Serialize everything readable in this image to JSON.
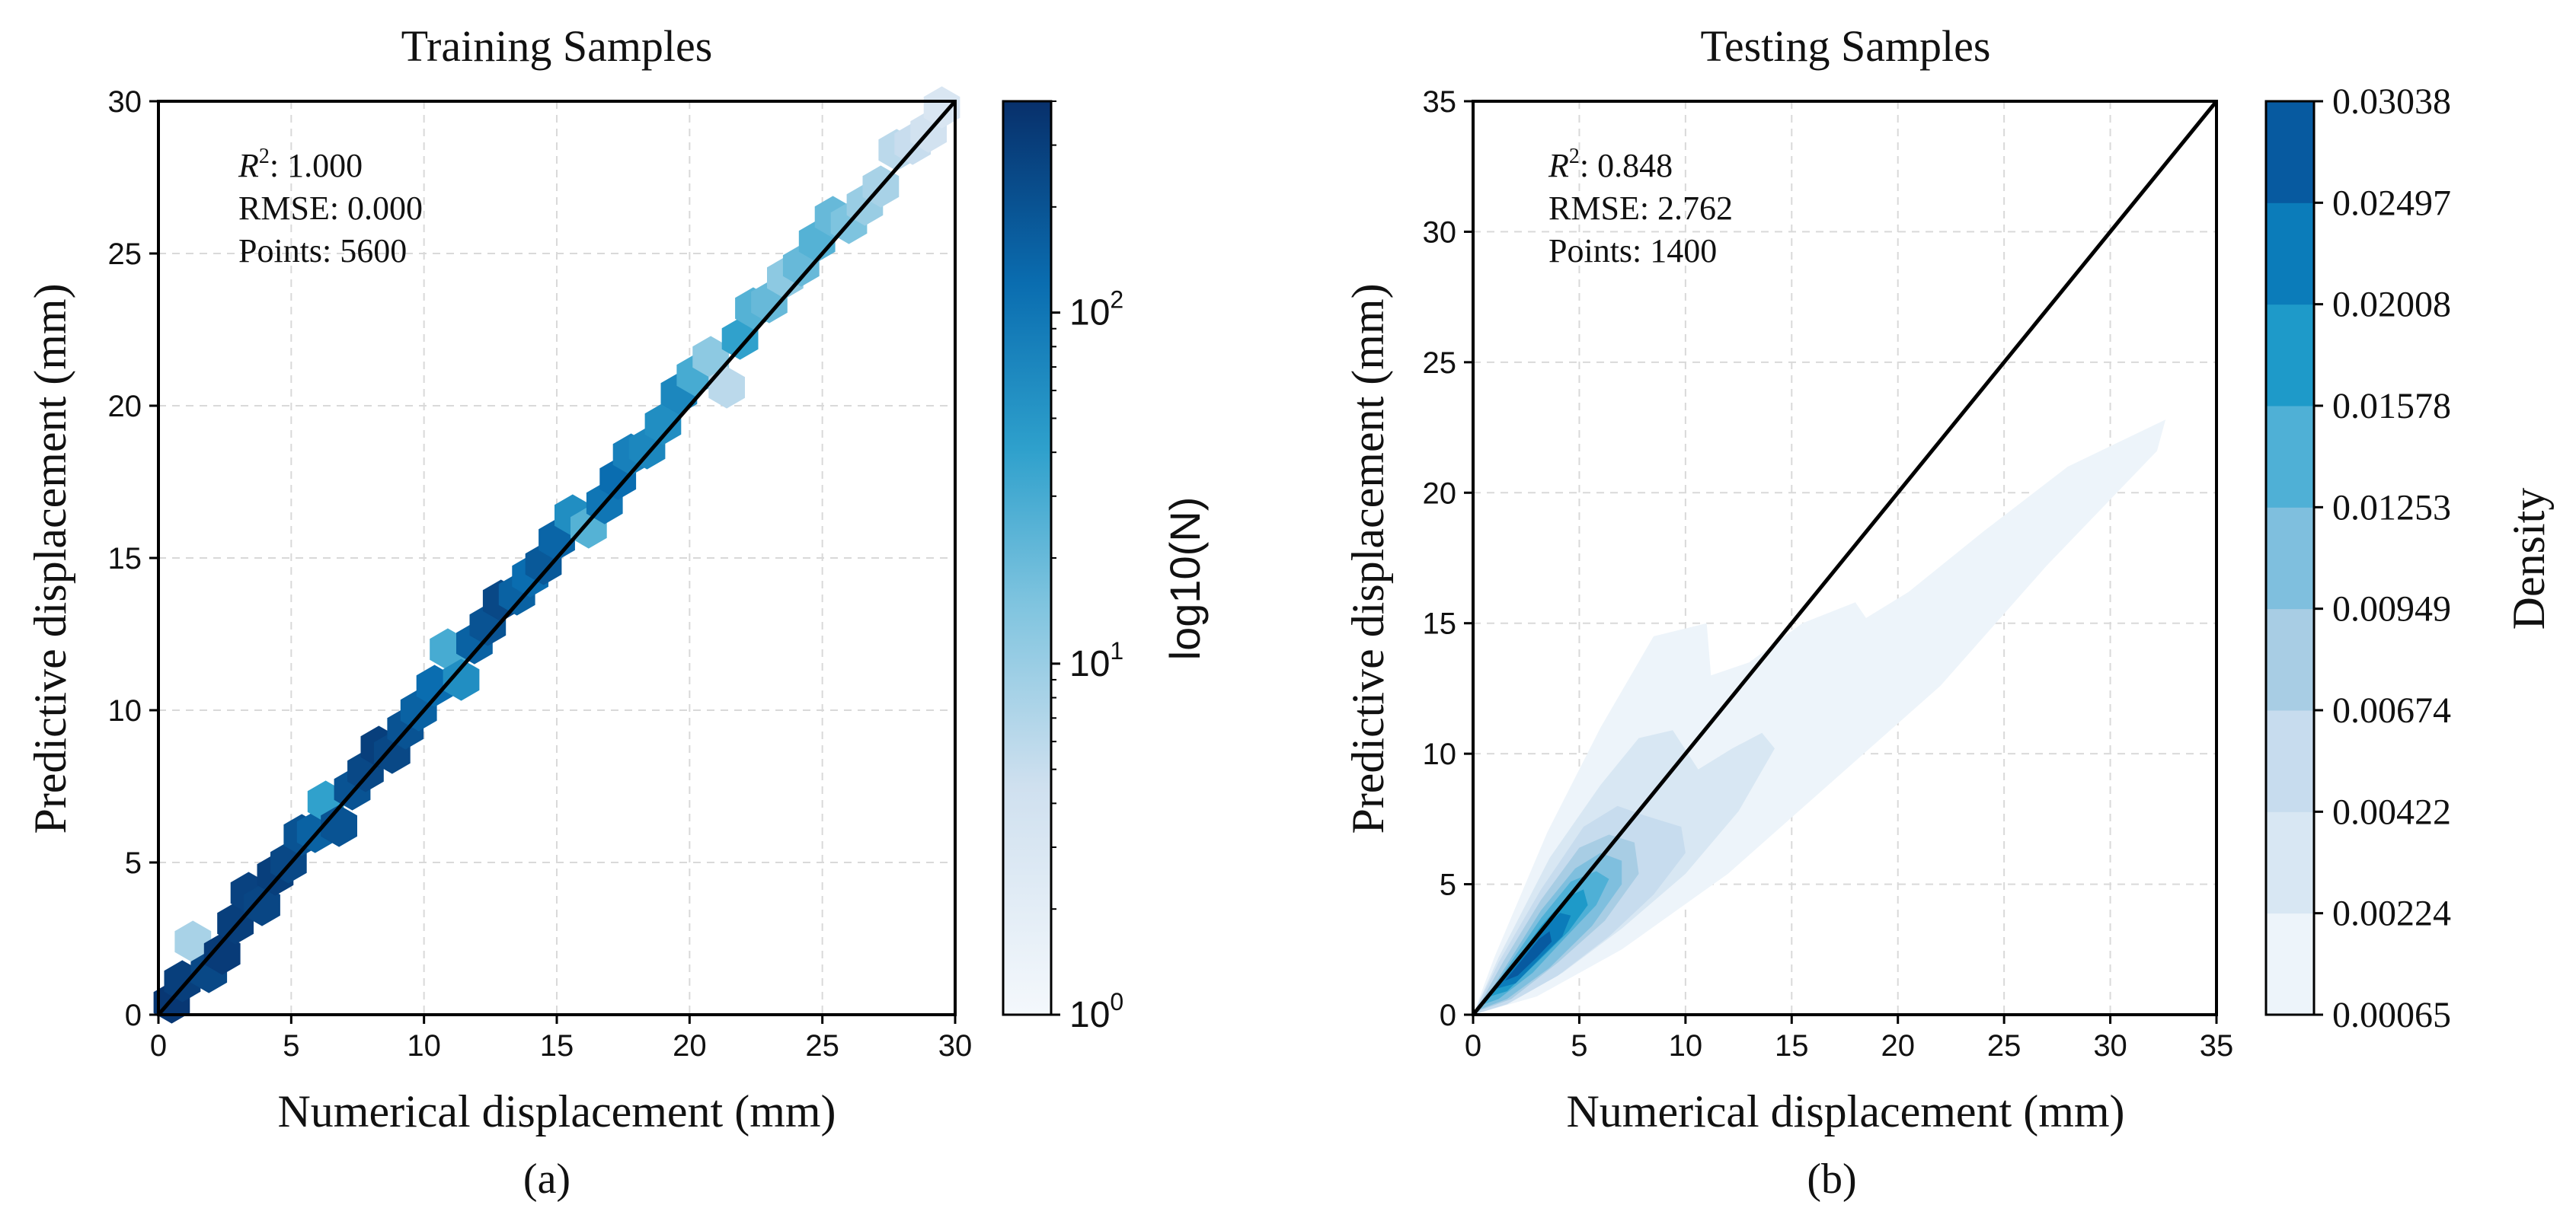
{
  "chart_data": [
    {
      "type": "hexbin",
      "title": "Training Samples",
      "xlabel": "Numerical displacement (mm)",
      "ylabel": "Predictive displacement (mm)",
      "caption": "(a)",
      "xlim": [
        0,
        30
      ],
      "ylim": [
        0,
        30
      ],
      "xticks": [
        0,
        5,
        10,
        15,
        20,
        25,
        30
      ],
      "yticks": [
        0,
        5,
        10,
        15,
        20,
        25,
        30
      ],
      "grid": true,
      "reference_line": "y = x",
      "stats": {
        "r2_symbol": "R",
        "r2_sup": "2",
        "r2": ": 1.000",
        "rmse": "RMSE: 0.000",
        "points": "Points: 5600"
      },
      "colorbar": {
        "label": "log10(N)",
        "scale": "log",
        "range": [
          1,
          400
        ],
        "ticks": [
          {
            "base": "10",
            "exp": "0",
            "value": 1
          },
          {
            "base": "10",
            "exp": "1",
            "value": 10
          },
          {
            "base": "10",
            "exp": "2",
            "value": 100
          }
        ]
      },
      "hexbins": [
        {
          "x": 0.5,
          "y": 0.4,
          "count": 350
        },
        {
          "x": 0.9,
          "y": 1.1,
          "count": 300
        },
        {
          "x": 1.3,
          "y": 2.4,
          "count": 8
        },
        {
          "x": 1.9,
          "y": 1.4,
          "count": 250
        },
        {
          "x": 2.4,
          "y": 2.0,
          "count": 320
        },
        {
          "x": 2.9,
          "y": 3.0,
          "count": 300
        },
        {
          "x": 3.4,
          "y": 4.0,
          "count": 280
        },
        {
          "x": 3.9,
          "y": 3.6,
          "count": 260
        },
        {
          "x": 4.4,
          "y": 4.6,
          "count": 300
        },
        {
          "x": 4.9,
          "y": 5.0,
          "count": 250
        },
        {
          "x": 5.4,
          "y": 5.9,
          "count": 200
        },
        {
          "x": 5.9,
          "y": 6.0,
          "count": 150
        },
        {
          "x": 6.3,
          "y": 7.0,
          "count": 40
        },
        {
          "x": 6.8,
          "y": 6.2,
          "count": 200
        },
        {
          "x": 7.3,
          "y": 7.4,
          "count": 200
        },
        {
          "x": 7.8,
          "y": 8.0,
          "count": 250
        },
        {
          "x": 8.3,
          "y": 8.8,
          "count": 300
        },
        {
          "x": 8.8,
          "y": 8.6,
          "count": 250
        },
        {
          "x": 9.3,
          "y": 9.4,
          "count": 200
        },
        {
          "x": 9.8,
          "y": 10.0,
          "count": 150
        },
        {
          "x": 10.4,
          "y": 10.8,
          "count": 120
        },
        {
          "x": 10.9,
          "y": 12.0,
          "count": 30
        },
        {
          "x": 11.4,
          "y": 11.0,
          "count": 60
        },
        {
          "x": 11.9,
          "y": 12.2,
          "count": 150
        },
        {
          "x": 12.4,
          "y": 12.8,
          "count": 200
        },
        {
          "x": 12.9,
          "y": 13.6,
          "count": 250
        },
        {
          "x": 13.5,
          "y": 13.8,
          "count": 150
        },
        {
          "x": 14.0,
          "y": 14.4,
          "count": 120
        },
        {
          "x": 14.5,
          "y": 14.8,
          "count": 180
        },
        {
          "x": 15.0,
          "y": 15.6,
          "count": 140
        },
        {
          "x": 15.6,
          "y": 16.4,
          "count": 60
        },
        {
          "x": 16.2,
          "y": 16.0,
          "count": 25
        },
        {
          "x": 16.8,
          "y": 16.8,
          "count": 100
        },
        {
          "x": 17.3,
          "y": 17.6,
          "count": 120
        },
        {
          "x": 17.8,
          "y": 18.4,
          "count": 80
        },
        {
          "x": 18.4,
          "y": 18.6,
          "count": 70
        },
        {
          "x": 19.0,
          "y": 19.4,
          "count": 60
        },
        {
          "x": 19.6,
          "y": 20.4,
          "count": 70
        },
        {
          "x": 20.2,
          "y": 21.0,
          "count": 30
        },
        {
          "x": 20.8,
          "y": 21.6,
          "count": 12
        },
        {
          "x": 21.4,
          "y": 20.6,
          "count": 6
        },
        {
          "x": 21.9,
          "y": 22.2,
          "count": 40
        },
        {
          "x": 22.4,
          "y": 23.2,
          "count": 25
        },
        {
          "x": 23.0,
          "y": 23.4,
          "count": 20
        },
        {
          "x": 23.6,
          "y": 24.2,
          "count": 12
        },
        {
          "x": 24.2,
          "y": 24.6,
          "count": 20
        },
        {
          "x": 24.8,
          "y": 25.4,
          "count": 25
        },
        {
          "x": 25.4,
          "y": 26.2,
          "count": 20
        },
        {
          "x": 26.0,
          "y": 26.0,
          "count": 15
        },
        {
          "x": 26.6,
          "y": 26.6,
          "count": 10
        },
        {
          "x": 27.2,
          "y": 27.2,
          "count": 8
        },
        {
          "x": 27.8,
          "y": 28.4,
          "count": 6
        },
        {
          "x": 28.4,
          "y": 28.6,
          "count": 5
        },
        {
          "x": 29.0,
          "y": 29.0,
          "count": 4
        },
        {
          "x": 29.5,
          "y": 29.8,
          "count": 3
        }
      ]
    },
    {
      "type": "kde",
      "title": "Testing Samples",
      "xlabel": "Numerical displacement (mm)",
      "ylabel": "Predictive displacement (mm)",
      "caption": "(b)",
      "xlim": [
        0,
        35
      ],
      "ylim": [
        0,
        35
      ],
      "xticks": [
        0,
        5,
        10,
        15,
        20,
        25,
        30,
        35
      ],
      "yticks": [
        0,
        5,
        10,
        15,
        20,
        25,
        30,
        35
      ],
      "grid": true,
      "reference_line": "y = x",
      "stats": {
        "r2_symbol": "R",
        "r2_sup": "2",
        "r2": ": 0.848",
        "rmse": "RMSE: 2.762",
        "points": "Points: 1400"
      },
      "colorbar": {
        "label": "Density",
        "levels": [
          "0.00065",
          "0.00224",
          "0.00422",
          "0.00674",
          "0.00949",
          "0.01253",
          "0.01578",
          "0.02008",
          "0.02497",
          "0.03038"
        ],
        "colors": [
          "#edf4fa",
          "#d8e7f3",
          "#c7dcee",
          "#a8cde4",
          "#7fbfde",
          "#4fb0d6",
          "#1e9ac9",
          "#0b7cba",
          "#075aa0",
          "#08306b"
        ]
      },
      "contours": [
        {
          "level": 0.00065,
          "polygon": [
            [
              0.0,
              0.0
            ],
            [
              1.0,
              2.2
            ],
            [
              3.5,
              7.0
            ],
            [
              6.0,
              11.0
            ],
            [
              8.5,
              14.5
            ],
            [
              11.0,
              15.0
            ],
            [
              11.2,
              13.0
            ],
            [
              13.0,
              13.5
            ],
            [
              15.5,
              15.0
            ],
            [
              18.0,
              15.8
            ],
            [
              18.5,
              15.2
            ],
            [
              20.5,
              16.2
            ],
            [
              24.0,
              18.5
            ],
            [
              28.0,
              21.0
            ],
            [
              32.6,
              22.8
            ],
            [
              32.2,
              21.6
            ],
            [
              27.0,
              17.2
            ],
            [
              22.0,
              12.6
            ],
            [
              17.0,
              9.0
            ],
            [
              12.0,
              5.4
            ],
            [
              7.0,
              2.5
            ],
            [
              3.0,
              0.7
            ]
          ]
        },
        {
          "level": 0.00224,
          "polygon": [
            [
              0.0,
              0.0
            ],
            [
              1.2,
              2.2
            ],
            [
              3.6,
              6.0
            ],
            [
              6.0,
              8.8
            ],
            [
              7.8,
              10.6
            ],
            [
              9.4,
              10.9
            ],
            [
              10.6,
              9.4
            ],
            [
              12.2,
              10.2
            ],
            [
              13.6,
              10.8
            ],
            [
              14.2,
              10.2
            ],
            [
              12.5,
              7.8
            ],
            [
              10.0,
              5.4
            ],
            [
              7.0,
              3.3
            ],
            [
              4.2,
              1.6
            ],
            [
              1.6,
              0.4
            ]
          ]
        },
        {
          "level": 0.00422,
          "polygon": [
            [
              0.0,
              0.0
            ],
            [
              1.2,
              2.0
            ],
            [
              3.2,
              4.8
            ],
            [
              5.2,
              7.2
            ],
            [
              6.8,
              8.0
            ],
            [
              8.2,
              7.6
            ],
            [
              9.8,
              7.2
            ],
            [
              10.0,
              6.2
            ],
            [
              8.5,
              4.6
            ],
            [
              6.4,
              3.0
            ],
            [
              4.0,
              1.5
            ],
            [
              1.6,
              0.4
            ]
          ]
        },
        {
          "level": 0.00674,
          "polygon": [
            [
              0.1,
              0.1
            ],
            [
              1.4,
              2.0
            ],
            [
              3.2,
              4.4
            ],
            [
              5.0,
              6.4
            ],
            [
              6.4,
              6.9
            ],
            [
              7.6,
              6.6
            ],
            [
              7.8,
              5.4
            ],
            [
              6.2,
              3.6
            ],
            [
              4.0,
              2.0
            ],
            [
              1.8,
              0.6
            ]
          ]
        },
        {
          "level": 0.00949,
          "polygon": [
            [
              0.3,
              0.2
            ],
            [
              1.5,
              1.8
            ],
            [
              3.2,
              4.0
            ],
            [
              4.8,
              5.6
            ],
            [
              6.0,
              6.2
            ],
            [
              7.0,
              5.9
            ],
            [
              7.0,
              5.0
            ],
            [
              5.6,
              3.4
            ],
            [
              3.6,
              1.8
            ],
            [
              1.6,
              0.6
            ]
          ]
        },
        {
          "level": 0.01253,
          "polygon": [
            [
              0.5,
              0.4
            ],
            [
              1.6,
              1.8
            ],
            [
              3.2,
              3.7
            ],
            [
              4.6,
              5.1
            ],
            [
              5.8,
              5.5
            ],
            [
              6.4,
              5.2
            ],
            [
              5.8,
              4.2
            ],
            [
              4.4,
              3.0
            ],
            [
              2.8,
              1.6
            ],
            [
              1.2,
              0.6
            ]
          ]
        },
        {
          "level": 0.01578,
          "polygon": [
            [
              0.8,
              0.7
            ],
            [
              1.8,
              1.8
            ],
            [
              3.2,
              3.4
            ],
            [
              4.4,
              4.5
            ],
            [
              5.2,
              4.8
            ],
            [
              5.4,
              4.2
            ],
            [
              4.5,
              3.2
            ],
            [
              3.0,
              2.0
            ],
            [
              1.6,
              0.9
            ]
          ]
        },
        {
          "level": 0.02008,
          "polygon": [
            [
              1.1,
              1.0
            ],
            [
              2.0,
              1.9
            ],
            [
              3.2,
              3.2
            ],
            [
              4.1,
              3.9
            ],
            [
              4.6,
              3.8
            ],
            [
              4.2,
              3.0
            ],
            [
              3.2,
              2.2
            ],
            [
              2.0,
              1.2
            ]
          ]
        },
        {
          "level": 0.02497,
          "polygon": [
            [
              1.5,
              1.3
            ],
            [
              2.3,
              2.1
            ],
            [
              3.1,
              2.9
            ],
            [
              3.6,
              3.2
            ],
            [
              3.7,
              2.8
            ],
            [
              3.0,
              2.2
            ],
            [
              2.1,
              1.5
            ]
          ]
        }
      ]
    }
  ]
}
